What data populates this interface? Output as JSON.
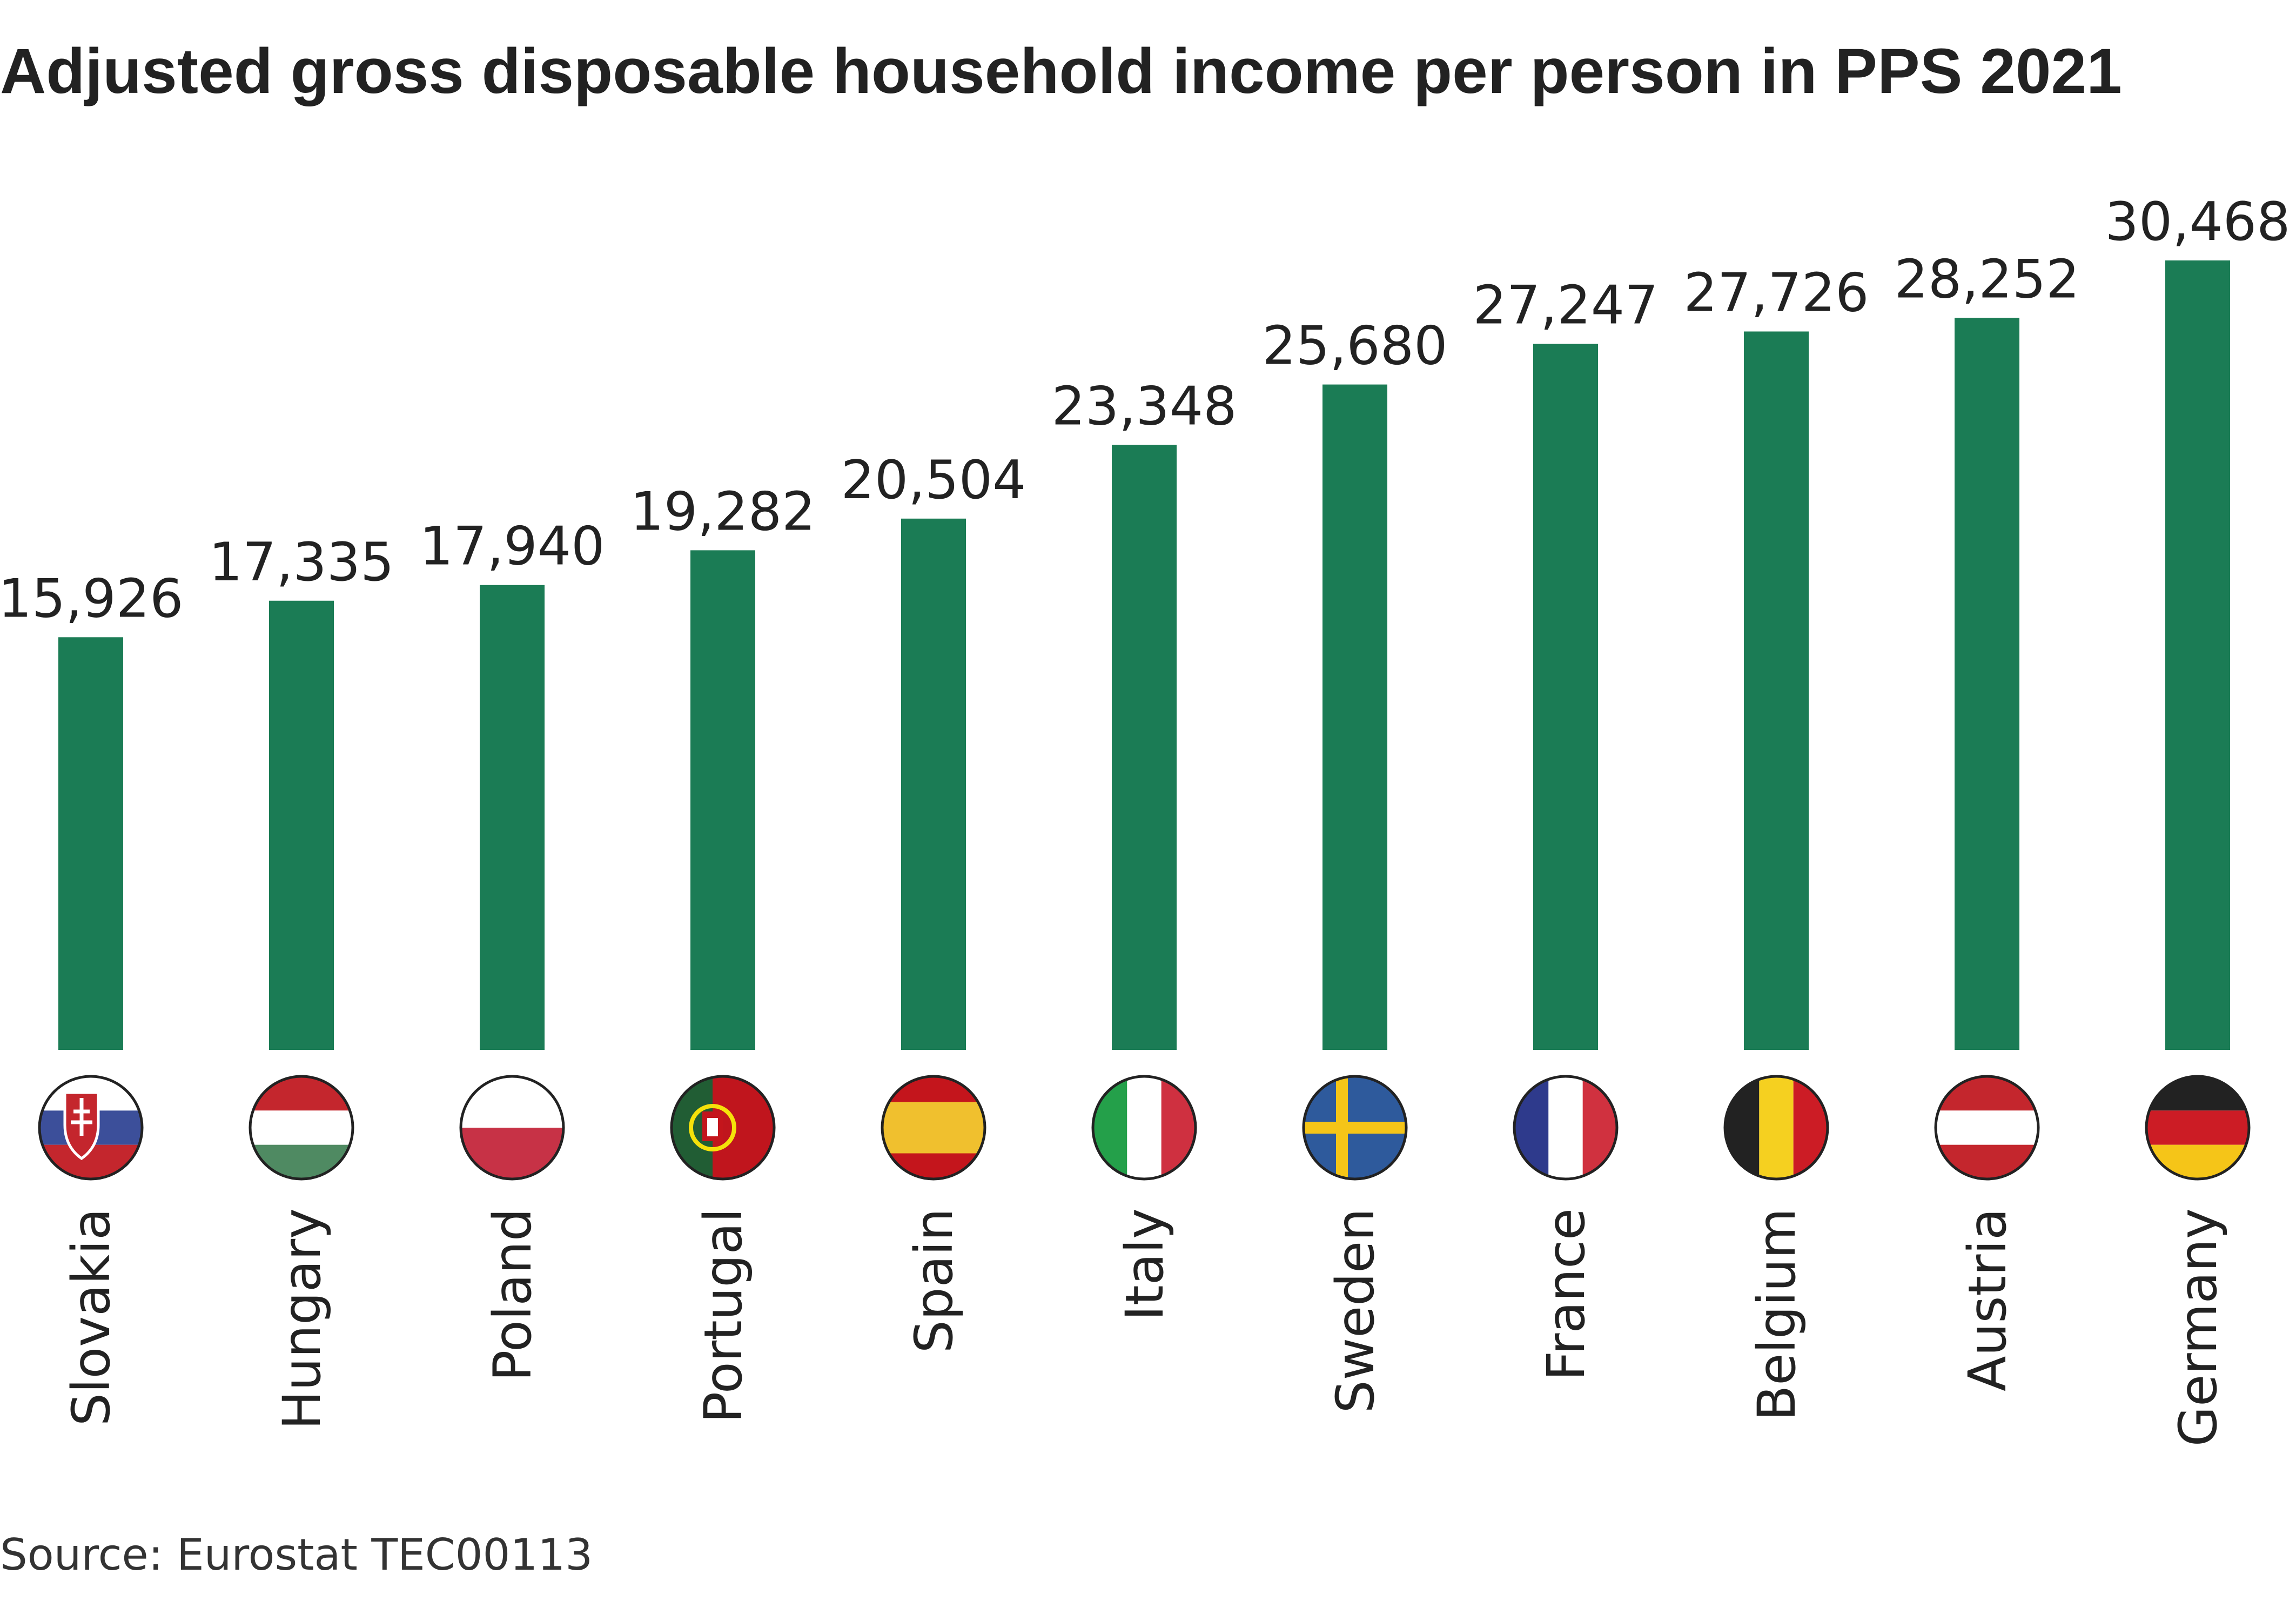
{
  "chart_data": {
    "type": "bar",
    "title": "Adjusted gross disposable household income per person in PPS 2021",
    "categories": [
      "Slovakia",
      "Hungary",
      "Poland",
      "Portugal",
      "Spain",
      "Italy",
      "Sweden",
      "France",
      "Belgium",
      "Austria",
      "Germany"
    ],
    "values": [
      15926,
      17335,
      17940,
      19282,
      20504,
      23348,
      25680,
      27247,
      27726,
      28252,
      30468
    ],
    "value_labels": [
      "15,926",
      "17,335",
      "17,940",
      "19,282",
      "20,504",
      "23,348",
      "25,680",
      "27,247",
      "27,726",
      "28,252",
      "30,468"
    ],
    "flags": [
      "slovakia-flag-icon",
      "hungary-flag-icon",
      "poland-flag-icon",
      "portugal-flag-icon",
      "spain-flag-icon",
      "italy-flag-icon",
      "sweden-flag-icon",
      "france-flag-icon",
      "belgium-flag-icon",
      "austria-flag-icon",
      "germany-flag-icon"
    ],
    "xlabel": "",
    "ylabel": "",
    "ylim": [
      0,
      30468
    ],
    "grid": false,
    "bar_color": "#1b7c55"
  },
  "source": "Source: Eurostat TEC00113"
}
